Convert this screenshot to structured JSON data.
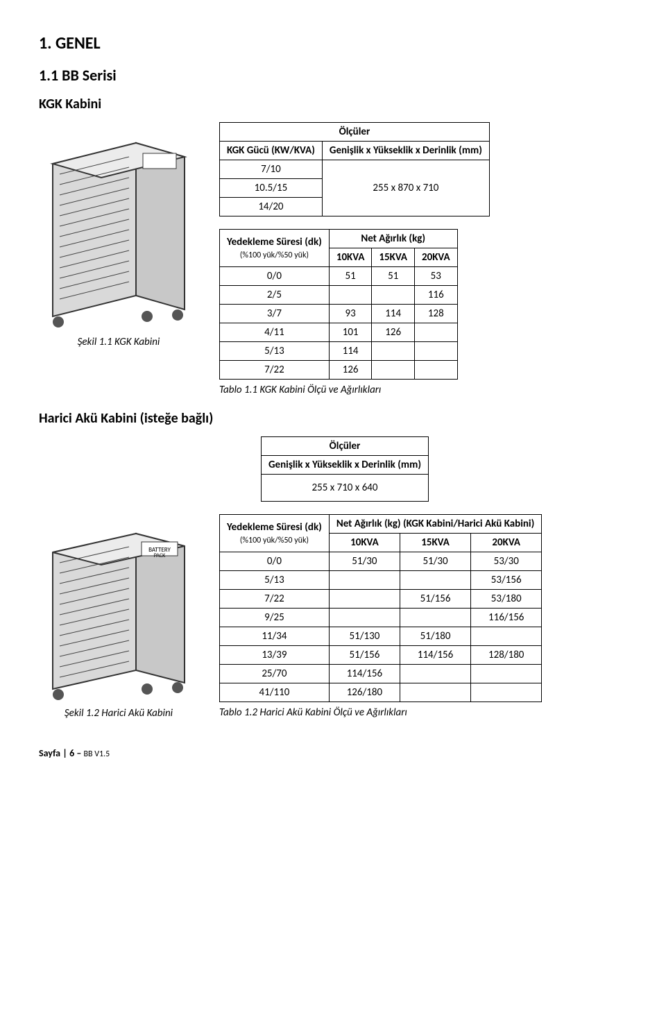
{
  "headings": {
    "section": "1. GENEL",
    "subsection": "1.1 BB Serisi",
    "kgk": "KGK Kabini",
    "harici": "Harici Akü Kabini (isteğe bağlı)"
  },
  "captions": {
    "fig1": "Şekil 1.1 KGK Kabini",
    "fig2": "Şekil 1.2 Harici Akü Kabini",
    "tab1": "Tablo 1.1 KGK Kabini Ölçü ve Ağırlıkları",
    "tab2": "Tablo 1.2 Harici Akü Kabini Ölçü ve Ağırlıkları"
  },
  "labels": {
    "olculer": "Ölçüler",
    "kgk_gucu": "KGK Gücü (KW/KVA)",
    "gyd": "Genişlik x Yükseklik x Derinlik (mm)",
    "yedekleme": "Yedekleme Süresi (dk)",
    "yedekleme_sub": "(%100 yük/%50 yük)",
    "net_agirlik": "Net Ağırlık (kg)",
    "net_agirlik_harici": "Net Ağırlık (kg) (KGK Kabini/Harici Akü Kabini)",
    "kva10": "10KVA",
    "kva15": "15KVA",
    "kva20": "20KVA"
  },
  "table1a": {
    "rows": [
      [
        "7/10",
        ""
      ],
      [
        "10.5/15",
        "255 x 870 x 710"
      ],
      [
        "14/20",
        ""
      ]
    ]
  },
  "table1b": {
    "rows": [
      [
        "0/0",
        "51",
        "51",
        "53"
      ],
      [
        "2/5",
        "",
        "",
        "116"
      ],
      [
        "3/7",
        "93",
        "114",
        "128"
      ],
      [
        "4/11",
        "101",
        "126",
        ""
      ],
      [
        "5/13",
        "114",
        "",
        ""
      ],
      [
        "7/22",
        "126",
        "",
        ""
      ]
    ]
  },
  "table2a": {
    "value": "255 x 710 x 640"
  },
  "table2b": {
    "rows": [
      [
        "0/0",
        "51/30",
        "51/30",
        "53/30"
      ],
      [
        "5/13",
        "",
        "",
        "53/156"
      ],
      [
        "7/22",
        "",
        "51/156",
        "53/180"
      ],
      [
        "9/25",
        "",
        "",
        "116/156"
      ],
      [
        "11/34",
        "51/130",
        "51/180",
        ""
      ],
      [
        "13/39",
        "51/156",
        "114/156",
        "128/180"
      ],
      [
        "25/70",
        "114/156",
        "",
        ""
      ],
      [
        "41/110",
        "126/180",
        "",
        ""
      ]
    ]
  },
  "footer": {
    "page": "Sayfa | 6 – ",
    "ver": "BB V1.5"
  },
  "colors": {
    "cabinet_fill": "#d9d9d9",
    "cabinet_stroke": "#333333",
    "vent_stroke": "#444444"
  }
}
